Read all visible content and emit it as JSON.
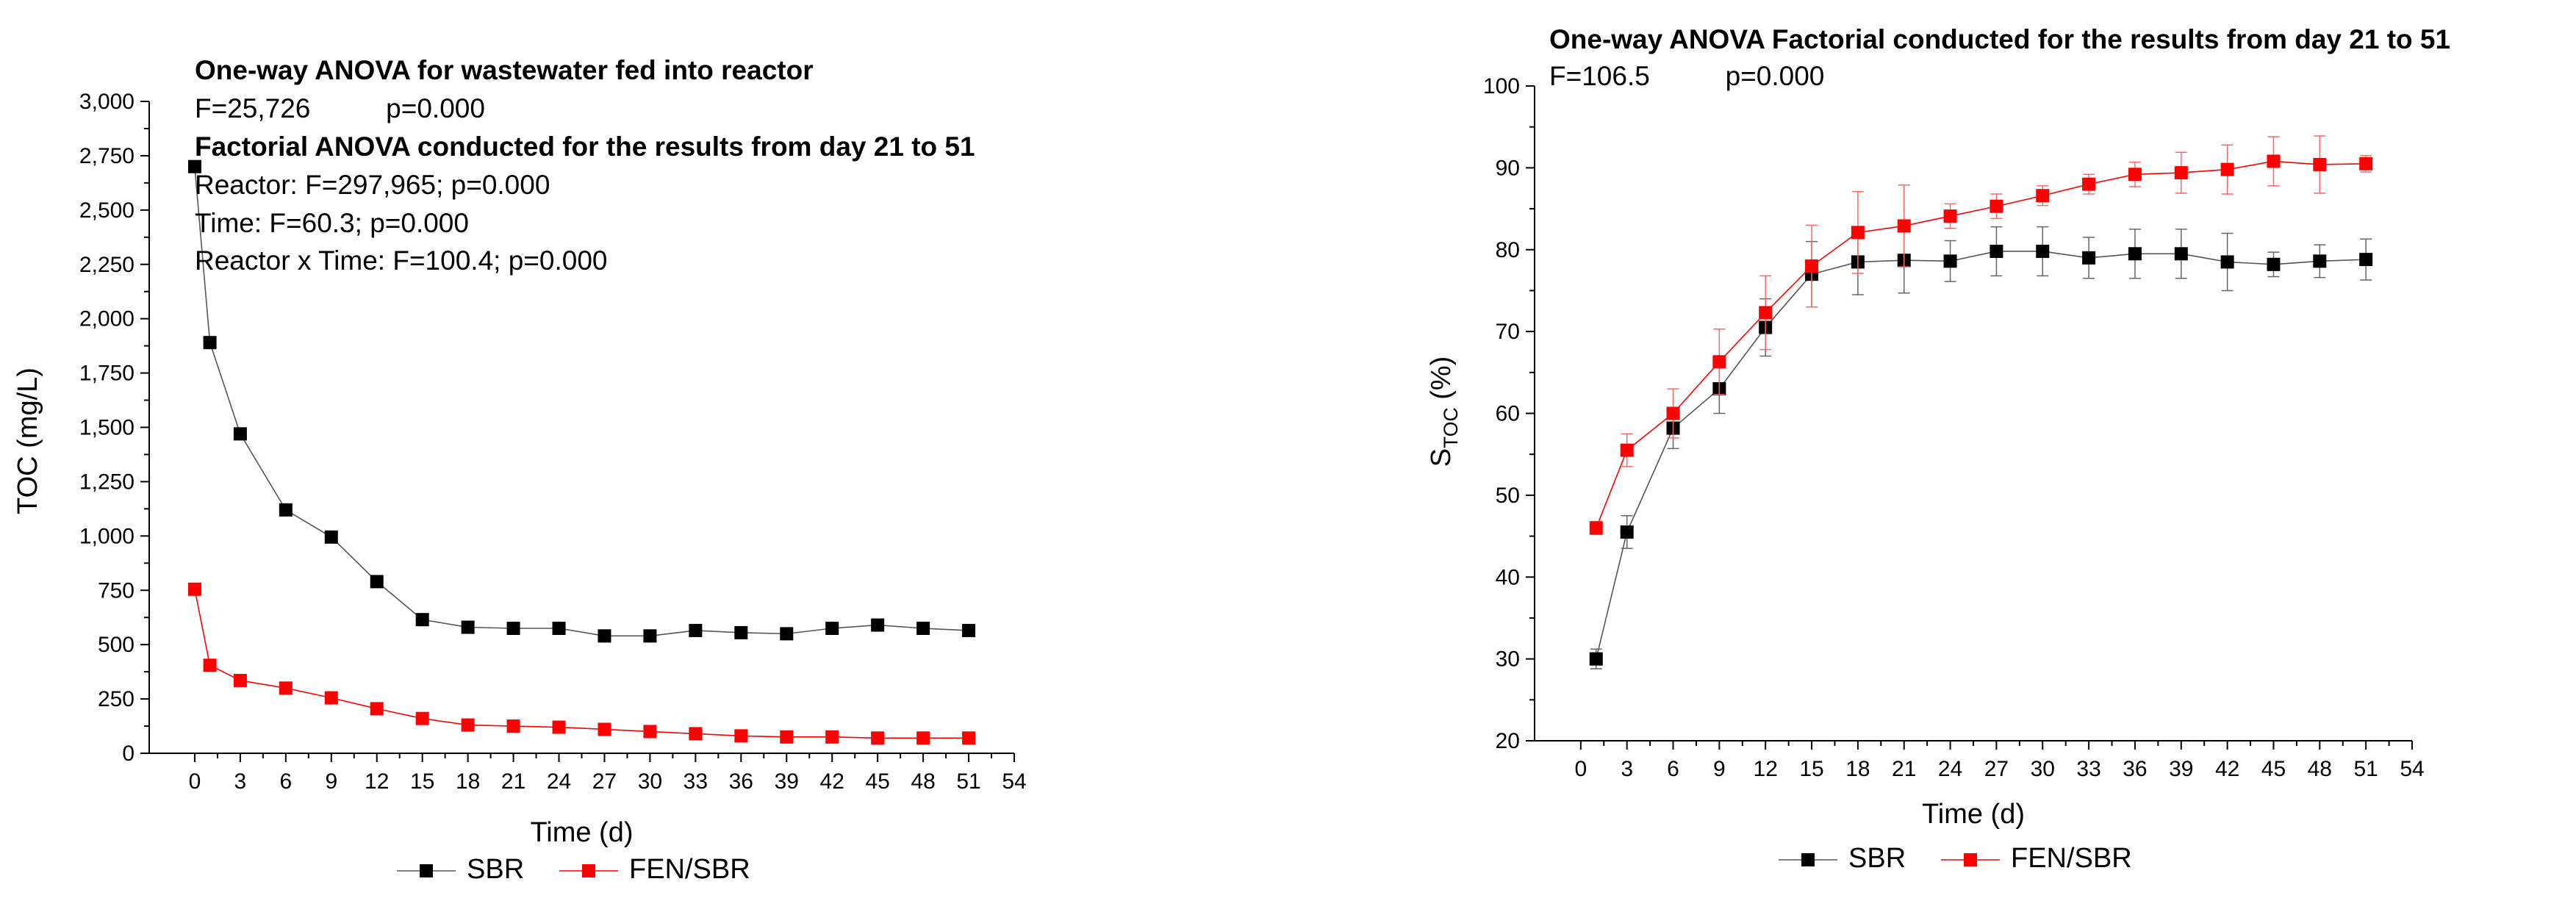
{
  "chart_data": [
    {
      "type": "line",
      "xlabel": "Time (d)",
      "ylabel": "TOC (mg/L)",
      "xlim": [
        -3,
        54
      ],
      "ylim": [
        0,
        3000
      ],
      "x_ticks": [
        0,
        3,
        6,
        9,
        12,
        15,
        18,
        21,
        24,
        27,
        30,
        33,
        36,
        39,
        42,
        45,
        48,
        51,
        54
      ],
      "y_ticks": [
        0,
        250,
        500,
        750,
        1000,
        1250,
        1500,
        1750,
        2000,
        2250,
        2500,
        2750,
        3000
      ],
      "x_tick_labels": [
        "0",
        "3",
        "6",
        "9",
        "12",
        "15",
        "18",
        "21",
        "24",
        "27",
        "30",
        "33",
        "36",
        "39",
        "42",
        "45",
        "48",
        "51",
        "54"
      ],
      "y_tick_labels": [
        "0",
        "250",
        "500",
        "750",
        "1,000",
        "1,250",
        "1,500",
        "1,750",
        "2,000",
        "2,250",
        "2,500",
        "2,750",
        "3,000"
      ],
      "x": [
        0,
        1,
        3,
        6,
        9,
        12,
        15,
        18,
        21,
        24,
        27,
        30,
        33,
        36,
        39,
        42,
        45,
        48,
        51
      ],
      "series": [
        {
          "name": "SBR",
          "color": "#000000",
          "values": [
            2700,
            1890,
            1470,
            1120,
            995,
            790,
            615,
            580,
            575,
            575,
            540,
            540,
            565,
            555,
            550,
            575,
            590,
            575,
            565
          ]
        },
        {
          "name": "FEN/SBR",
          "color": "#ff0000",
          "values": [
            755,
            405,
            335,
            300,
            255,
            205,
            160,
            130,
            125,
            120,
            110,
            100,
            90,
            80,
            75,
            75,
            70,
            70,
            70
          ]
        }
      ],
      "annotations": [
        {
          "text": "One-way ANOVA for wastewater fed into reactor",
          "bold": true
        },
        {
          "text": "F=25,726          p=0.000",
          "bold": false
        },
        {
          "text": "Factorial ANOVA conducted for the results from day 21 to 51",
          "bold": true
        },
        {
          "text": "Reactor: F=297,965; p=0.000",
          "bold": false
        },
        {
          "text": "Time: F=60.3; p=0.000",
          "bold": false
        },
        {
          "text": "Reactor x Time: F=100.4; p=0.000",
          "bold": false
        }
      ],
      "legend": [
        "SBR",
        "FEN/SBR"
      ],
      "legend_position": "bottom"
    },
    {
      "type": "line",
      "xlabel": "Time (d)",
      "ylabel_main": "S",
      "ylabel_sub": "TOC",
      "ylabel_unit": " (%)",
      "xlim": [
        -3,
        54
      ],
      "ylim": [
        20,
        100
      ],
      "x_ticks": [
        0,
        3,
        6,
        9,
        12,
        15,
        18,
        21,
        24,
        27,
        30,
        33,
        36,
        39,
        42,
        45,
        48,
        51,
        54
      ],
      "y_ticks": [
        20,
        30,
        40,
        50,
        60,
        70,
        80,
        90,
        100
      ],
      "x_tick_labels": [
        "0",
        "3",
        "6",
        "9",
        "12",
        "15",
        "18",
        "21",
        "24",
        "27",
        "30",
        "33",
        "36",
        "39",
        "42",
        "45",
        "48",
        "51",
        "54"
      ],
      "y_tick_labels": [
        "20",
        "30",
        "40",
        "50",
        "60",
        "70",
        "80",
        "90",
        "100"
      ],
      "x": [
        1,
        3,
        6,
        9,
        12,
        15,
        18,
        21,
        24,
        27,
        30,
        33,
        36,
        39,
        42,
        45,
        48,
        51
      ],
      "series": [
        {
          "name": "SBR",
          "color": "#000000",
          "values": [
            30,
            45.5,
            58.2,
            63,
            70.5,
            77,
            78.5,
            78.7,
            78.6,
            79.8,
            79.8,
            79,
            79.5,
            79.5,
            78.5,
            78.2,
            78.6,
            78.8
          ],
          "errors": [
            1.2,
            2,
            2.5,
            3,
            3.5,
            4,
            4,
            4,
            2.5,
            3,
            3,
            2.5,
            3,
            3,
            3.5,
            1.5,
            2,
            2.5
          ]
        },
        {
          "name": "FEN/SBR",
          "color": "#ff0000",
          "values": [
            46,
            55.5,
            60,
            66.3,
            72.3,
            78,
            82.1,
            82.9,
            84.1,
            85.3,
            86.6,
            88,
            89.2,
            89.4,
            89.8,
            90.8,
            90.4,
            90.5
          ],
          "errors": [
            0.8,
            2,
            3,
            4,
            4.5,
            5,
            5,
            5,
            1.5,
            1.5,
            1.2,
            1.2,
            1.5,
            2.5,
            3,
            3,
            3.5,
            1
          ]
        }
      ],
      "annotations": [
        {
          "text": "One-way ANOVA Factorial conducted for the results from day 21 to 51",
          "bold": true
        },
        {
          "text": "F=106.5          p=0.000",
          "bold": false
        }
      ],
      "legend": [
        "SBR",
        "FEN/SBR"
      ],
      "legend_position": "bottom"
    }
  ]
}
